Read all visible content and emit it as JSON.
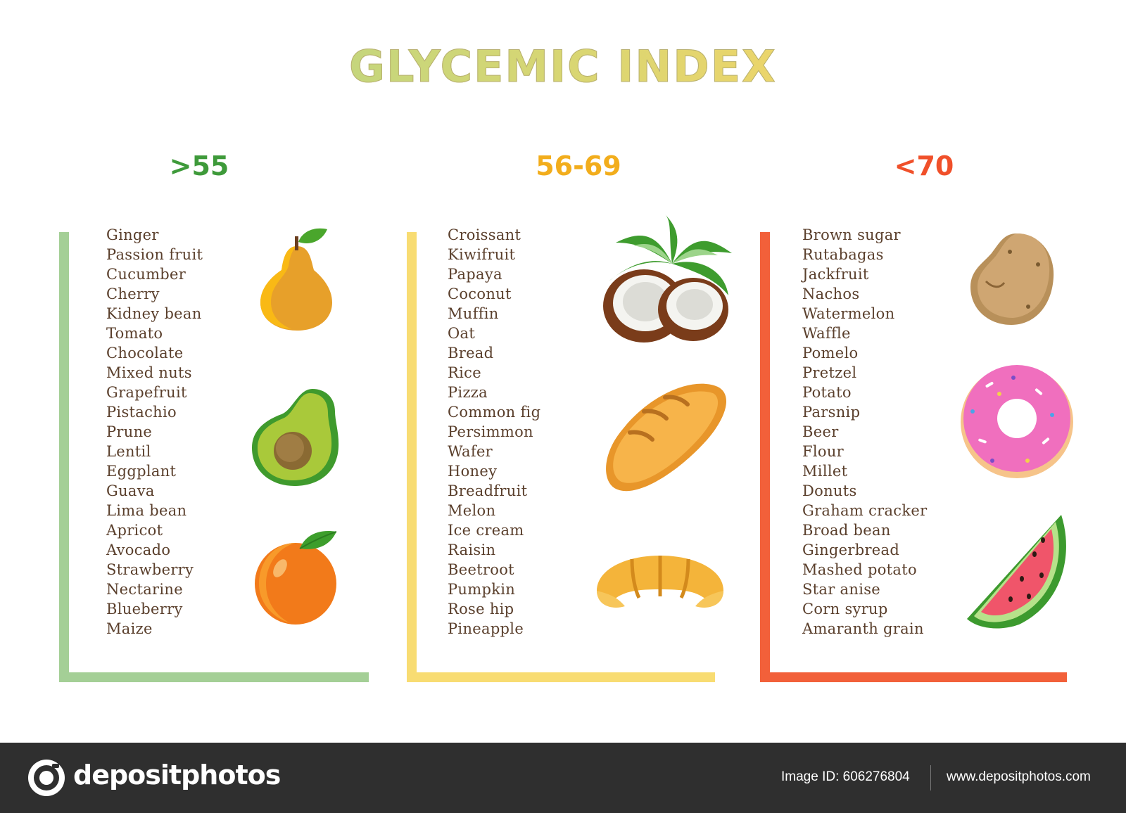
{
  "title": "GLYCEMIC INDEX",
  "columns": [
    {
      "heading": ">55",
      "color": "#3e9a3a",
      "line_color": "#a4cf96",
      "foods": [
        "Ginger",
        "Passion fruit",
        "Cucumber",
        "Cherry",
        "Kidney bean",
        "Tomato",
        "Chocolate",
        "Mixed nuts",
        "Grapefruit",
        "Pistachio",
        "Prune",
        "Lentil",
        "Eggplant",
        "Guava",
        "Lima bean",
        "Apricot",
        "Avocado",
        "Strawberry",
        "Nectarine",
        "Blueberry",
        "Maize"
      ],
      "icons": [
        "pear-icon",
        "avocado-icon",
        "orange-icon"
      ]
    },
    {
      "heading": "56-69",
      "color": "#f2ad1c",
      "line_color": "#f8dc72",
      "foods": [
        "Croissant",
        "Kiwifruit",
        "Papaya",
        "Coconut",
        "Muffin",
        "Oat",
        "Bread",
        "Rice",
        "Pizza",
        "Common fig",
        "Persimmon",
        "Wafer",
        "Honey",
        "Breadfruit",
        "Melon",
        "Ice cream",
        "Raisin",
        "Beetroot",
        "Pumpkin",
        "Rose hip",
        "Pineapple"
      ],
      "icons": [
        "coconut-icon",
        "bread-icon",
        "croissant-icon"
      ]
    },
    {
      "heading": "<70",
      "color": "#f0502a",
      "line_color": "#f2603a",
      "foods": [
        "Brown sugar",
        "Rutabagas",
        "Jackfruit",
        "Nachos",
        "Watermelon",
        "Waffle",
        "Pomelo",
        "Pretzel",
        "Potato",
        "Parsnip",
        "Beer",
        "Flour",
        "Millet",
        "Donuts",
        "Graham cracker",
        "Broad bean",
        "Gingerbread",
        "Mashed potato",
        "Star anise",
        "Corn syrup",
        "Amaranth grain"
      ],
      "icons": [
        "potato-icon",
        "donut-icon",
        "watermelon-icon"
      ]
    }
  ],
  "footer": {
    "logo": "depositphotos",
    "image_id": "Image ID: 606276804",
    "site": "www.depositphotos.com"
  }
}
